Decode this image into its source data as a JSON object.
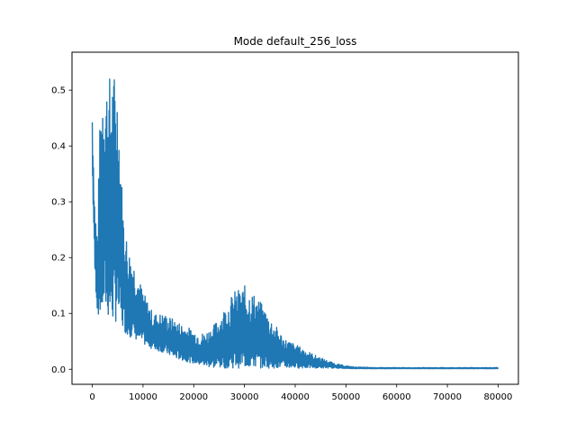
{
  "chart_data": {
    "type": "line",
    "title": "Mode default_256_loss",
    "xlabel": "",
    "ylabel": "",
    "xlim": [
      -4000,
      84000
    ],
    "ylim": [
      -0.027,
      0.568
    ],
    "xticks": [
      0,
      10000,
      20000,
      30000,
      40000,
      50000,
      60000,
      70000,
      80000
    ],
    "xtick_labels": [
      "0",
      "10000",
      "20000",
      "30000",
      "40000",
      "50000",
      "60000",
      "70000",
      "80000"
    ],
    "yticks": [
      0.0,
      0.1,
      0.2,
      0.3,
      0.4,
      0.5
    ],
    "ytick_labels": [
      "0.0",
      "0.1",
      "0.2",
      "0.3",
      "0.4",
      "0.5"
    ],
    "grid": false,
    "series": [
      {
        "color": "#1f77b4",
        "x": [
          0,
          500,
          1000,
          1500,
          2000,
          2500,
          3000,
          4000,
          5000,
          6000,
          7000,
          8000,
          9000,
          10000,
          12000,
          14000,
          16000,
          18000,
          20000,
          22000,
          24000,
          26000,
          28000,
          30000,
          32000,
          34000,
          36000,
          38000,
          40000,
          42000,
          44000,
          46000,
          48000,
          50000,
          52000,
          56000,
          60000,
          65000,
          70000,
          75000,
          80000
        ],
        "upper": [
          0.47,
          0.3,
          0.25,
          0.44,
          0.54,
          0.54,
          0.52,
          0.54,
          0.52,
          0.3,
          0.22,
          0.2,
          0.17,
          0.14,
          0.1,
          0.1,
          0.09,
          0.08,
          0.07,
          0.065,
          0.08,
          0.11,
          0.14,
          0.15,
          0.135,
          0.11,
          0.08,
          0.055,
          0.045,
          0.035,
          0.025,
          0.017,
          0.01,
          0.006,
          0.004,
          0.003,
          0.003,
          0.003,
          0.003,
          0.003,
          0.003
        ],
        "lower": [
          0.35,
          0.17,
          0.1,
          0.09,
          0.095,
          0.1,
          0.09,
          0.08,
          0.085,
          0.07,
          0.06,
          0.055,
          0.05,
          0.045,
          0.035,
          0.03,
          0.02,
          0.015,
          0.01,
          0.005,
          0.002,
          0.002,
          0.002,
          0.002,
          0.002,
          0.002,
          0.002,
          0.002,
          0.002,
          0.002,
          0.002,
          0.002,
          0.002,
          0.001,
          0.001,
          0.001,
          0.001,
          0.001,
          0.001,
          0.001,
          0.001
        ]
      }
    ]
  }
}
